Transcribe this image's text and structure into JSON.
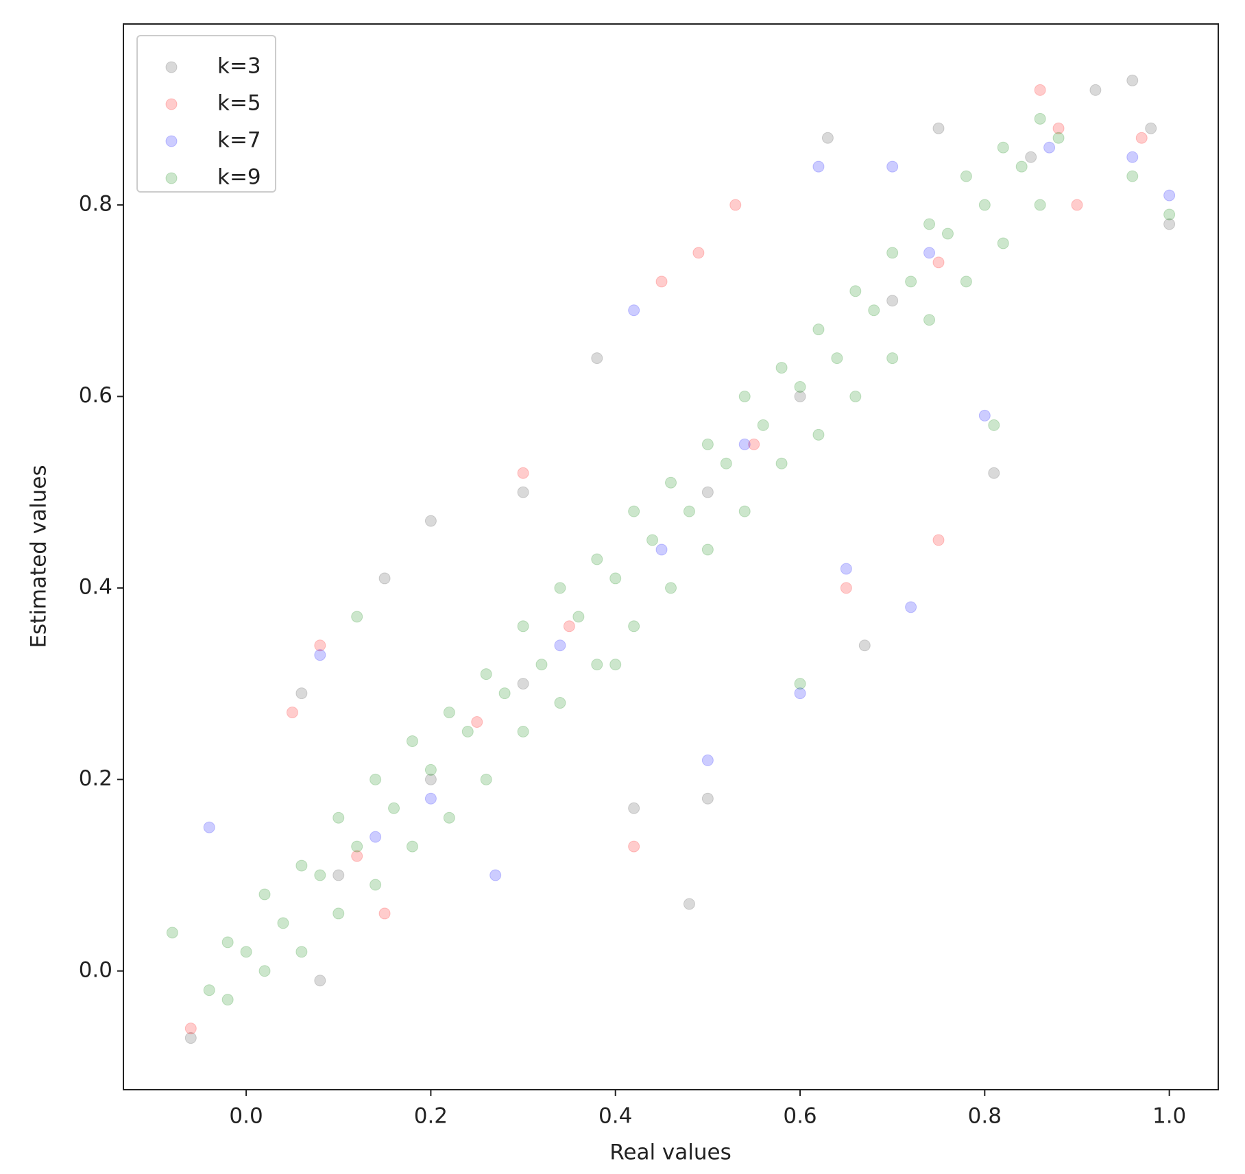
{
  "chart_data": {
    "type": "scatter",
    "x_label": "Real values",
    "y_label": "Estimated values",
    "xlim": [
      -0.133,
      1.053
    ],
    "ylim": [
      -0.124,
      0.989
    ],
    "xticks": [
      {
        "value": 0,
        "label": "0.0"
      },
      0.2,
      0.4,
      0.6,
      0.8,
      {
        "value": 1,
        "label": "1.0"
      }
    ],
    "yticks": [
      {
        "value": 0,
        "label": "0.0"
      },
      0.2,
      0.4,
      0.6,
      0.8
    ],
    "legend": "upper left",
    "alpha": 0.2,
    "series": [
      {
        "name": "k=3",
        "color": "#404040",
        "x": [
          -0.06,
          0.06,
          0.2,
          0.15,
          0.38,
          0.48,
          0.5,
          0.81,
          0.67,
          0.63,
          0.75,
          0.92,
          0.96,
          0.98,
          1.0,
          0.42,
          0.08,
          0.3,
          0.1,
          0.3,
          0.5,
          0.7,
          0.85,
          0.2,
          0.6
        ],
        "y": [
          -0.07,
          0.29,
          0.47,
          0.41,
          0.64,
          0.07,
          0.18,
          0.52,
          0.34,
          0.87,
          0.88,
          0.92,
          0.93,
          0.88,
          0.78,
          0.17,
          -0.01,
          0.5,
          0.1,
          0.3,
          0.5,
          0.7,
          0.85,
          0.2,
          0.6
        ]
      },
      {
        "name": "k=5",
        "color": "#ff0000",
        "x": [
          -0.06,
          0.08,
          0.42,
          0.75,
          0.53,
          0.49,
          0.97,
          0.86,
          0.15,
          0.3,
          0.12,
          0.35,
          0.55,
          0.75,
          0.88,
          0.25,
          0.65,
          0.05,
          0.9,
          0.45
        ],
        "y": [
          -0.06,
          0.34,
          0.13,
          0.45,
          0.8,
          0.75,
          0.87,
          0.92,
          0.06,
          0.52,
          0.12,
          0.36,
          0.55,
          0.74,
          0.88,
          0.26,
          0.4,
          0.27,
          0.8,
          0.72
        ]
      },
      {
        "name": "k=7",
        "color": "#0000ff",
        "x": [
          -0.04,
          0.6,
          0.5,
          0.42,
          0.65,
          1.0,
          0.96,
          0.8,
          0.72,
          0.08,
          0.14,
          0.34,
          0.54,
          0.74,
          0.87,
          0.27,
          0.7,
          0.62,
          0.2,
          0.45
        ],
        "y": [
          0.15,
          0.29,
          0.22,
          0.69,
          0.42,
          0.81,
          0.85,
          0.58,
          0.38,
          0.33,
          0.14,
          0.34,
          0.55,
          0.75,
          0.86,
          0.1,
          0.84,
          0.84,
          0.18,
          0.44
        ]
      },
      {
        "name": "k=9",
        "color": "#008000",
        "x": [
          -0.04,
          0,
          0.04,
          0.08,
          0.12,
          0.16,
          0.2,
          0.24,
          0.28,
          0.32,
          0.36,
          0.4,
          0.44,
          0.48,
          0.52,
          0.56,
          0.6,
          0.64,
          0.68,
          0.72,
          0.76,
          0.8,
          0.84,
          0.88,
          -0.02,
          0.02,
          0.06,
          0.1,
          0.14,
          0.18,
          0.22,
          0.26,
          0.3,
          0.34,
          0.38,
          0.42,
          0.46,
          0.5,
          0.54,
          0.58,
          0.62,
          0.66,
          0.7,
          0.74,
          0.78,
          0.82,
          0.86,
          -0.02,
          0.02,
          0.06,
          0.1,
          0.14,
          0.18,
          0.22,
          0.26,
          0.3,
          0.34,
          0.38,
          0.42,
          0.46,
          0.5,
          0.54,
          0.58,
          0.62,
          0.66,
          0.7,
          0.74,
          0.78,
          0.82,
          0.86,
          0.12,
          0.6,
          0.81,
          0.96,
          1.0,
          -0.08,
          0.4
        ],
        "y": [
          -0.02,
          0.02,
          0.05,
          0.1,
          0.13,
          0.17,
          0.21,
          0.25,
          0.29,
          0.32,
          0.37,
          0.41,
          0.45,
          0.48,
          0.53,
          0.57,
          0.61,
          0.64,
          0.69,
          0.72,
          0.77,
          0.8,
          0.84,
          0.87,
          0.03,
          0.08,
          0.11,
          0.16,
          0.2,
          0.24,
          0.27,
          0.31,
          0.36,
          0.4,
          0.43,
          0.48,
          0.51,
          0.55,
          0.6,
          0.63,
          0.67,
          0.71,
          0.75,
          0.78,
          0.83,
          0.86,
          0.89,
          -0.03,
          0,
          0.02,
          0.06,
          0.09,
          0.13,
          0.16,
          0.2,
          0.25,
          0.28,
          0.32,
          0.36,
          0.4,
          0.44,
          0.48,
          0.53,
          0.56,
          0.6,
          0.64,
          0.68,
          0.72,
          0.76,
          0.8,
          0.37,
          0.3,
          0.57,
          0.83,
          0.79,
          0.04,
          0.32
        ]
      }
    ]
  }
}
